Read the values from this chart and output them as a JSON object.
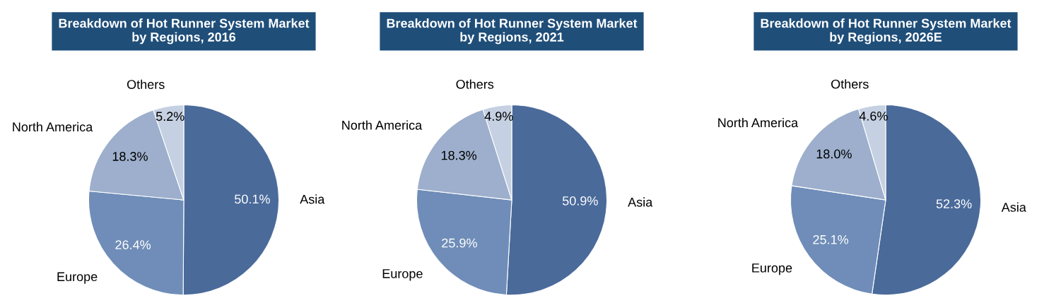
{
  "chart_data": [
    {
      "type": "pie",
      "title": "Breakdown of Hot Runner System Market\nby Regions, 2016",
      "categories": [
        "Asia",
        "Europe",
        "North America",
        "Others"
      ],
      "values": [
        50.1,
        26.4,
        18.3,
        5.2
      ],
      "colors": [
        "#4a6a9a",
        "#6f8db8",
        "#9dafcc",
        "#c5d0e2"
      ],
      "value_labels": [
        "50.1%",
        "26.4%",
        "18.3%",
        "5.2%"
      ]
    },
    {
      "type": "pie",
      "title": "Breakdown of Hot Runner System Market\nby Regions, 2021",
      "categories": [
        "Asia",
        "Europe",
        "North America",
        "Others"
      ],
      "values": [
        50.9,
        25.9,
        18.3,
        4.9
      ],
      "colors": [
        "#4a6a9a",
        "#6f8db8",
        "#9dafcc",
        "#c5d0e2"
      ],
      "value_labels": [
        "50.9%",
        "25.9%",
        "18.3%",
        "4.9%"
      ]
    },
    {
      "type": "pie",
      "title": "Breakdown of Hot Runner System Market\nby Regions, 2026E",
      "categories": [
        "Asia",
        "Europe",
        "North America",
        "Others"
      ],
      "values": [
        52.3,
        25.1,
        18.0,
        4.6
      ],
      "colors": [
        "#4a6a9a",
        "#6f8db8",
        "#9dafcc",
        "#c5d0e2"
      ],
      "value_labels": [
        "52.3%",
        "25.1%",
        "18.0%",
        "4.6%"
      ]
    }
  ]
}
